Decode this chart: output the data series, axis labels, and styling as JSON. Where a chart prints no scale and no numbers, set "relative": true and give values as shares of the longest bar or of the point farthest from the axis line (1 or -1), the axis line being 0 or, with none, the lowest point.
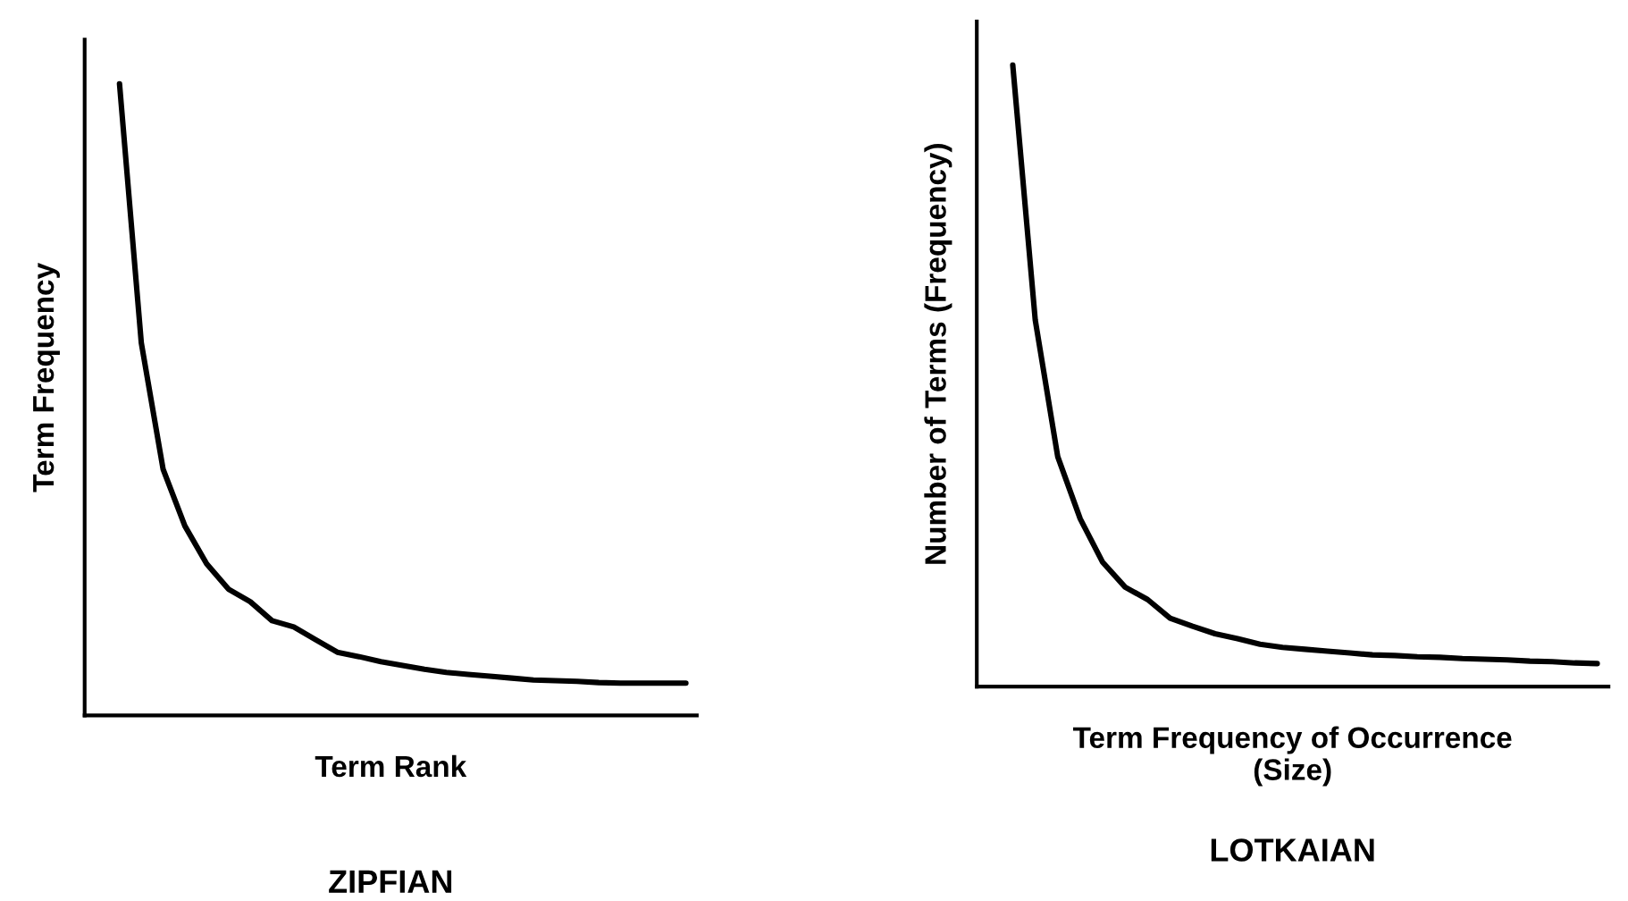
{
  "chart_data": [
    {
      "type": "line",
      "relative": true,
      "xlabel": "Term Rank",
      "ylabel": "Term Frequency",
      "annotations": [
        "ZIPFIAN"
      ],
      "color": "#000000",
      "marker": "none",
      "line_style": "solid",
      "grid": false,
      "legend": false,
      "tick_labels": false,
      "categories": [
        null,
        null,
        null,
        null,
        null,
        null,
        null,
        null,
        null,
        null,
        null,
        null,
        null,
        null,
        null,
        null,
        null,
        null,
        null,
        null,
        null,
        null,
        null,
        null,
        null,
        null,
        null
      ],
      "values": [
        1,
        0.59,
        0.39,
        0.3,
        0.24,
        0.2,
        0.18,
        0.15,
        0.14,
        0.12,
        0.1,
        0.093,
        0.085,
        0.079,
        0.073,
        0.068,
        0.065,
        0.062,
        0.059,
        0.056,
        0.055,
        0.054,
        0.052,
        0.051,
        0.051,
        0.051,
        0.051
      ]
    },
    {
      "type": "line",
      "relative": true,
      "xlabel": "Term Frequency of Occurrence\n(Size)",
      "ylabel": "Number of Terms (Frequency)",
      "annotations": [
        "LOTKAIAN"
      ],
      "color": "#000000",
      "marker": "none",
      "line_style": "solid",
      "grid": false,
      "legend": false,
      "tick_labels": false,
      "categories": [
        null,
        null,
        null,
        null,
        null,
        null,
        null,
        null,
        null,
        null,
        null,
        null,
        null,
        null,
        null,
        null,
        null,
        null,
        null,
        null,
        null,
        null,
        null,
        null,
        null,
        null,
        null
      ],
      "values": [
        1,
        0.59,
        0.37,
        0.27,
        0.2,
        0.16,
        0.14,
        0.11,
        0.097,
        0.085,
        0.077,
        0.068,
        0.063,
        0.06,
        0.057,
        0.054,
        0.051,
        0.05,
        0.048,
        0.047,
        0.045,
        0.044,
        0.043,
        0.041,
        0.04,
        0.038,
        0.037
      ]
    }
  ]
}
